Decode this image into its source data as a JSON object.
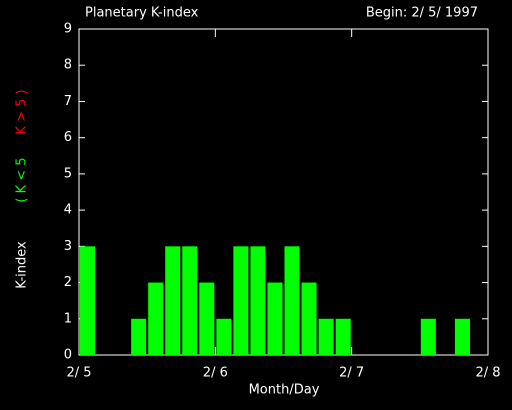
{
  "chart_data": {
    "type": "bar",
    "title": "Planetary K-index",
    "subtitle": "Begin: 2/ 5/ 1997",
    "x_label": "Month/Day",
    "y_label": "K-index",
    "legend": [
      {
        "name": "( K < 5",
        "color": "#00ff00"
      },
      {
        "name": "K > 5 )",
        "color": "#ff0000"
      }
    ],
    "x": [
      0,
      0.125,
      0.25,
      0.375,
      0.5,
      0.625,
      0.75,
      0.875,
      1,
      1.125,
      1.25,
      1.375,
      1.5,
      1.625,
      1.75,
      1.875,
      2,
      2.125,
      2.25,
      2.375,
      2.5,
      2.625,
      2.75,
      2.875
    ],
    "values": [
      3,
      0,
      0,
      1,
      2,
      3,
      3,
      2,
      1,
      3,
      3,
      2,
      3,
      2,
      1,
      1,
      0,
      0,
      0,
      0,
      1,
      0,
      1,
      0
    ],
    "bar_width": 0.125,
    "color": "#00ff00",
    "xlim": [
      0,
      3
    ],
    "xticks": [
      {
        "value": 0,
        "label": "2/ 5"
      },
      {
        "value": 1,
        "label": "2/ 6"
      },
      {
        "value": 2,
        "label": "2/ 7"
      },
      {
        "value": 3,
        "label": "2/ 8"
      }
    ],
    "ylim": [
      0,
      9
    ],
    "yticks": [
      0,
      1,
      2,
      3,
      4,
      5,
      6,
      7,
      8,
      9
    ]
  }
}
